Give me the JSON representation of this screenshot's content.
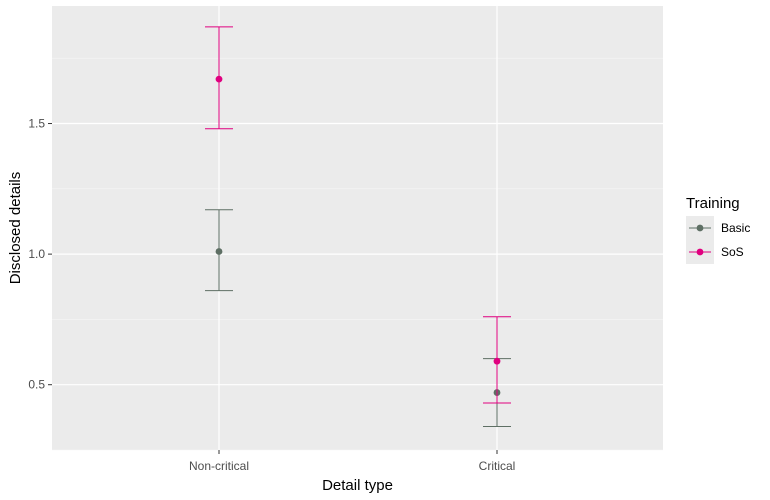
{
  "chart_data": {
    "type": "scatter",
    "xlabel": "Detail type",
    "ylabel": "Disclosed details",
    "categories": [
      "Non-critical",
      "Critical"
    ],
    "yticks": [
      0.5,
      1.0,
      1.5
    ],
    "ytick_labels": [
      "0.5",
      "1.0",
      "1.5"
    ],
    "ylim": [
      0.25,
      1.95
    ],
    "grid": true,
    "legend": {
      "title": "Training",
      "position": "right"
    },
    "series": [
      {
        "name": "Basic",
        "color": "#5e6f64",
        "points": [
          {
            "category": "Non-critical",
            "y": 1.01,
            "ymin": 0.86,
            "ymax": 1.17
          },
          {
            "category": "Critical",
            "y": 0.47,
            "ymin": 0.34,
            "ymax": 0.6
          }
        ]
      },
      {
        "name": "SoS",
        "color": "#e0007f",
        "points": [
          {
            "category": "Non-critical",
            "y": 1.67,
            "ymin": 1.48,
            "ymax": 1.87
          },
          {
            "category": "Critical",
            "y": 0.59,
            "ymin": 0.43,
            "ymax": 0.76
          }
        ]
      }
    ]
  }
}
